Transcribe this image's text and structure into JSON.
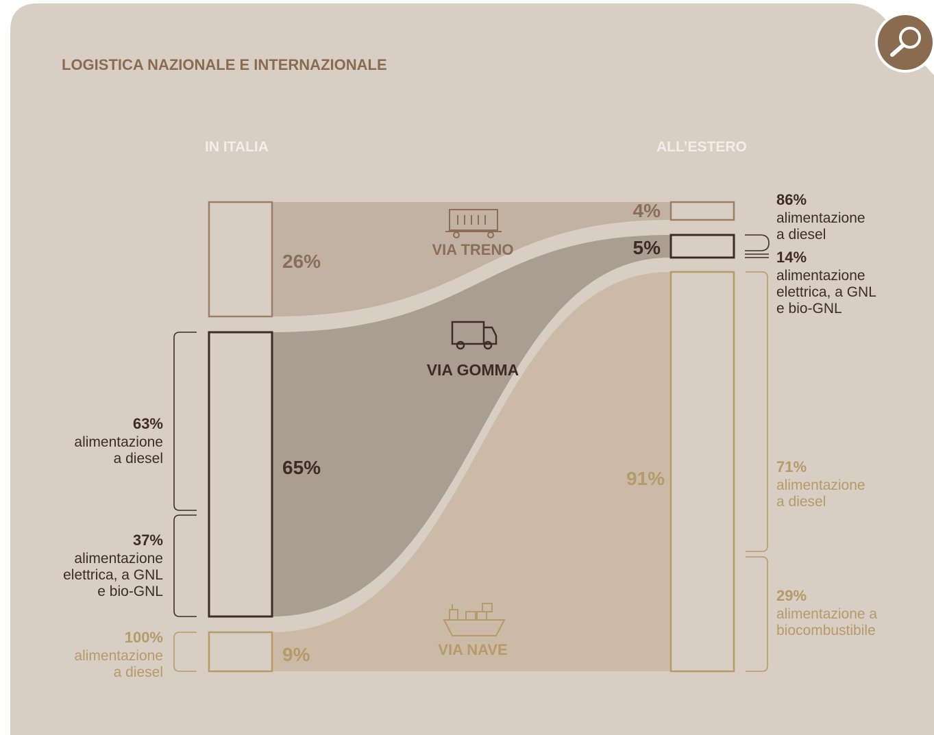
{
  "title": "LOGISTICA NAZIONALE E INTERNAZIONALE",
  "left_header": "IN ITALIA",
  "right_header": "ALL’ESTERO",
  "modes": [
    {
      "name": "VIA TRENO",
      "left": "26%",
      "right": "4%"
    },
    {
      "name": "VIA GOMMA",
      "left": "65%",
      "right": "5%"
    },
    {
      "name": "VIA NAVE",
      "left": "9%",
      "right": "91%"
    }
  ],
  "left_breakdowns": [
    {
      "pct": "63%",
      "lines": [
        "alimentazione",
        "a diesel"
      ]
    },
    {
      "pct": "37%",
      "lines": [
        "alimentazione",
        "elettrica, a GNL",
        "e bio-GNL"
      ]
    },
    {
      "pct": "100%",
      "lines": [
        "alimentazione",
        "a diesel"
      ]
    }
  ],
  "right_breakdowns": [
    {
      "pct": "86%",
      "lines": [
        "alimentazione",
        "a diesel"
      ]
    },
    {
      "pct": "14%",
      "lines": [
        "alimentazione",
        "elettrica, a GNL",
        "e bio-GNL"
      ]
    },
    {
      "pct": "71%",
      "lines": [
        "alimentazione",
        "a diesel"
      ]
    },
    {
      "pct": "29%",
      "lines": [
        "alimentazione a",
        "biocombustibile"
      ]
    }
  ]
}
